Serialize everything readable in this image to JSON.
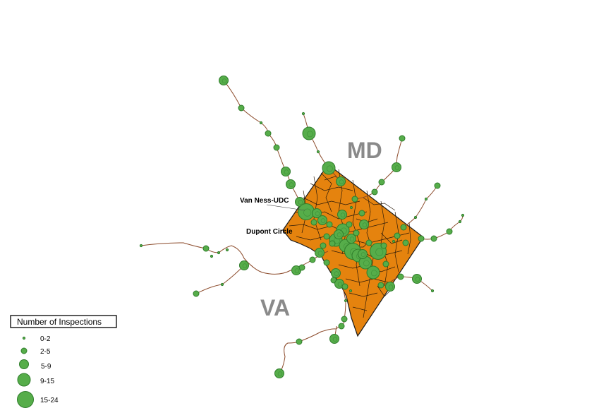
{
  "regions": {
    "md": "MD",
    "va": "VA"
  },
  "callouts": {
    "van_ness": "Van Ness-UDC",
    "dupont": "Dupont Circle"
  },
  "legend": {
    "title": "Number of Inspections",
    "classes": [
      "0-2",
      "2-5",
      "5-9",
      "9-15",
      "15-24"
    ]
  },
  "colors": {
    "district_fill": "#e5830e",
    "stop_fill": "#56ad4a",
    "metro_line": "#8b4a2a",
    "region_label": "#8a8a8a"
  }
}
